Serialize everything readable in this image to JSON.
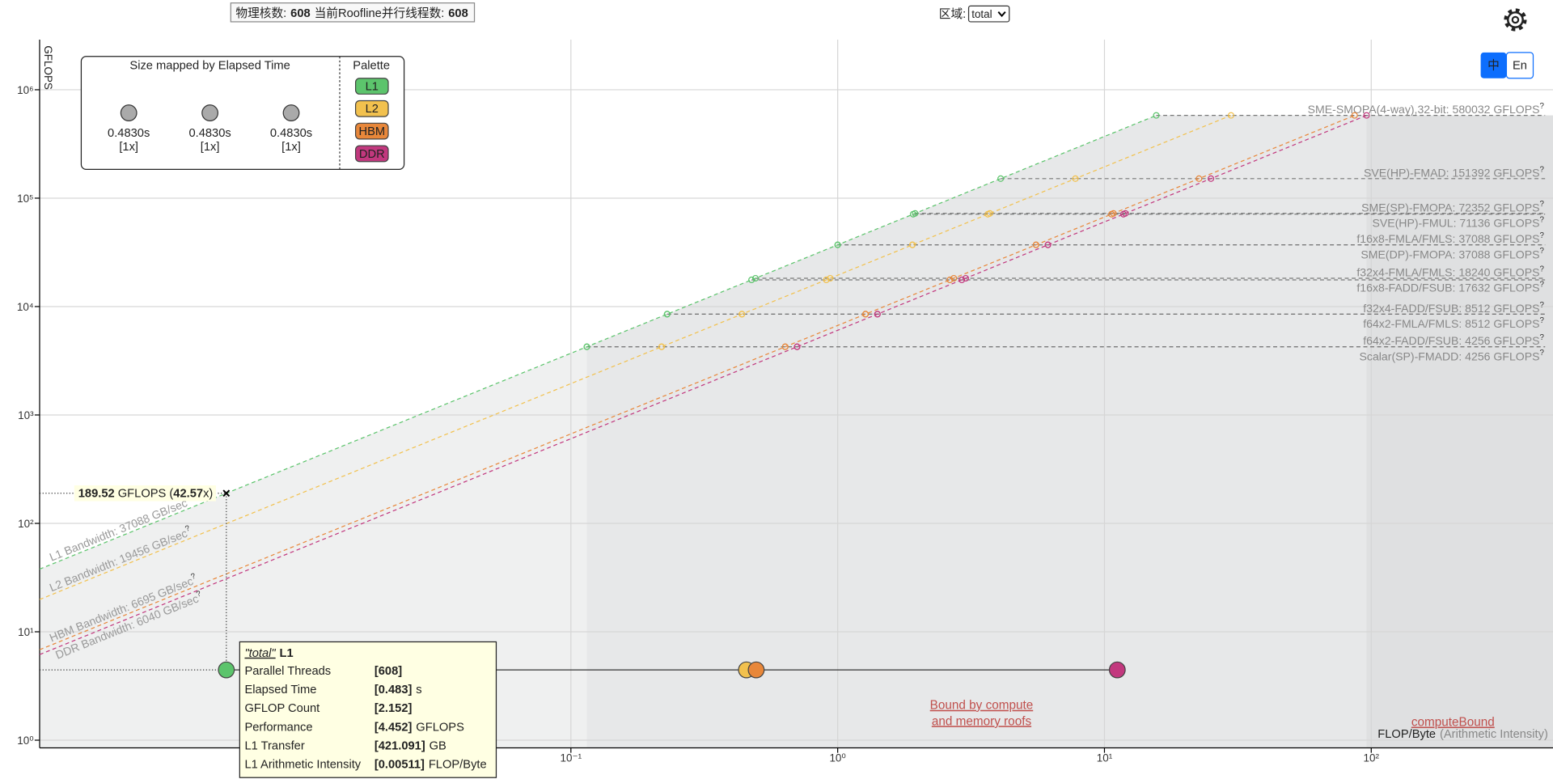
{
  "header": {
    "cores_label": "物理核数:",
    "cores": 608,
    "threads_label": "当前Roofline并行线程数:",
    "threads": 608
  },
  "region": {
    "label": "区域:",
    "selected": "total"
  },
  "language_buttons": [
    "中",
    "En"
  ],
  "chart_data": {
    "type": "roofline",
    "y_label": "GFLOPS",
    "x_label": "FLOP/Byte",
    "x_label_note": "(Arithmetic Intensity)",
    "xlog": true,
    "ylog": true,
    "grid": true,
    "xlim": [
      0.00102,
      480
    ],
    "ylim": [
      0.85,
      2900000
    ],
    "xticks": [
      {
        "value": 0.1,
        "label": "10⁻¹"
      },
      {
        "value": 1,
        "label": "10⁰"
      },
      {
        "value": 10,
        "label": "10¹"
      },
      {
        "value": 100,
        "label": "10²"
      }
    ],
    "yticks": [
      {
        "value": 1,
        "label": "10⁰"
      },
      {
        "value": 10,
        "label": "10¹"
      },
      {
        "value": 100,
        "label": "10²"
      },
      {
        "value": 1000,
        "label": "10³"
      },
      {
        "value": 10000,
        "label": "10⁴"
      },
      {
        "value": 100000,
        "label": "10⁵"
      },
      {
        "value": 1000000,
        "label": "10⁶"
      }
    ],
    "help_mark": "?",
    "bandwidths": [
      {
        "label": "L1 Bandwidth: 37088 GB/sec",
        "value": 37088,
        "color": "#5cc46c"
      },
      {
        "label": "L2 Bandwidth: 19456 GB/sec",
        "value": 19456,
        "color": "#f2c14e"
      },
      {
        "label": "HBM Bandwidth: 6695 GB/sec",
        "value": 6695,
        "color": "#e8873a"
      },
      {
        "label": "DDR Bandwidth: 6040 GB/sec",
        "value": 6040,
        "color": "#c2387e"
      }
    ],
    "compute_roofs": [
      {
        "label": "SME-SMOPA(4-way),32-bit: 580032 GFLOPS",
        "value": 580032
      },
      {
        "label": "SVE(HP)-FMAD: 151392 GFLOPS",
        "value": 151392
      },
      {
        "label": "SME(SP)-FMOPA: 72352 GFLOPS",
        "value": 72352
      },
      {
        "label": "SVE(HP)-FMUL: 71136 GFLOPS",
        "value": 71136
      },
      {
        "label": "f16x8-FMLA/FMLS: 37088 GFLOPS",
        "value": 37088
      },
      {
        "label": "SME(DP)-FMOPA: 37088 GFLOPS",
        "value": 37088
      },
      {
        "label": "f32x4-FMLA/FMLS: 18240 GFLOPS",
        "value": 18240
      },
      {
        "label": "f16x8-FADD/FSUB: 17632 GFLOPS",
        "value": 17632
      },
      {
        "label": "f32x4-FADD/FSUB: 8512 GFLOPS",
        "value": 8512
      },
      {
        "label": "f64x2-FMLA/FMLS: 8512 GFLOPS",
        "value": 8512
      },
      {
        "label": "f64x2-FADD/FSUB: 4256 GFLOPS",
        "value": 4256
      },
      {
        "label": "Scalar(SP)-FMADD: 4256 GFLOPS",
        "value": 4256
      }
    ],
    "series": [
      {
        "name": "L1",
        "color": "#5cc46c",
        "x": [
          0.00511
        ],
        "values": [
          4.452
        ]
      },
      {
        "name": "L2",
        "color": "#f2c14e",
        "x": [
          0.455
        ],
        "values": [
          4.452
        ]
      },
      {
        "name": "HBM",
        "color": "#e8873a",
        "x": [
          0.495
        ],
        "values": [
          4.452
        ]
      },
      {
        "name": "DDR",
        "color": "#c2387e",
        "x": [
          11.17
        ],
        "values": [
          4.452
        ]
      }
    ],
    "hover": {
      "value": 189.52,
      "text_parts": [
        "189.52",
        " GFLOPS (",
        "42.57",
        "x)"
      ]
    },
    "size_legend": {
      "title": "Size mapped by Elapsed Time",
      "items": [
        {
          "time": "0.4830s",
          "scale": "[1x]"
        },
        {
          "time": "0.4830s",
          "scale": "[1x]"
        },
        {
          "time": "0.4830s",
          "scale": "[1x]"
        }
      ]
    },
    "palette_title": "Palette",
    "annotations": [
      "Bound by compute",
      "and memory roofs",
      "computeBound"
    ],
    "tooltip": {
      "region": "\"total\"",
      "level": "L1",
      "rows": [
        {
          "label": "Parallel Threads",
          "value": "[608]"
        },
        {
          "label": "Elapsed Time",
          "value": "[0.483]",
          "unit": "s"
        },
        {
          "label": "GFLOP Count",
          "value": "[2.152]"
        },
        {
          "label": "Performance",
          "value": "[4.452]",
          "unit": "GFLOPS"
        },
        {
          "label": "L1 Transfer",
          "value": "[421.091]",
          "unit": "GB"
        },
        {
          "label": "L1 Arithmetic Intensity",
          "value": "[0.00511]",
          "unit": "FLOP/Byte"
        }
      ]
    }
  }
}
